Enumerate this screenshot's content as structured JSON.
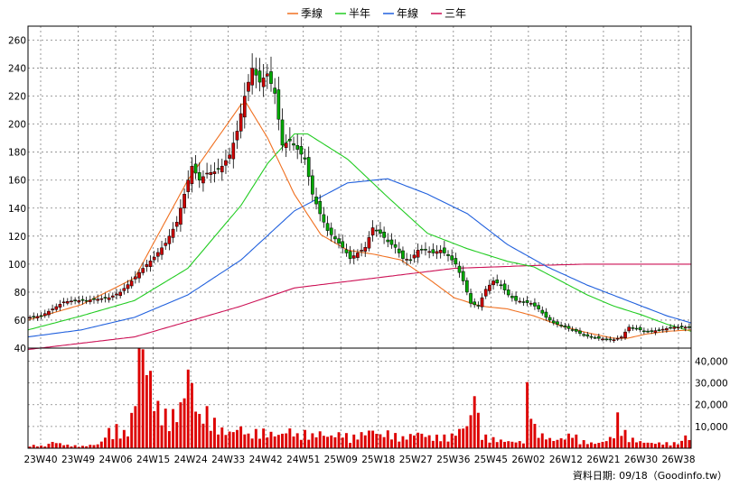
{
  "chart_data": {
    "type": "candlestick",
    "legend": [
      {
        "label": "季線",
        "color": "#f07020"
      },
      {
        "label": "半年",
        "color": "#22cc22"
      },
      {
        "label": "年線",
        "color": "#2060dd"
      },
      {
        "label": "三年",
        "color": "#cc1155"
      }
    ],
    "colors": {
      "up": "#cc0000",
      "down": "#00aa00",
      "volume": "#dd0000",
      "grid": "#808080"
    },
    "price_axis": {
      "ylim": [
        40,
        270
      ],
      "ticks": [
        40,
        60,
        80,
        100,
        120,
        140,
        160,
        180,
        200,
        220,
        240,
        260
      ]
    },
    "volume_axis": {
      "ylim": [
        0,
        46000
      ],
      "ticks": [
        10000,
        20000,
        30000,
        40000
      ],
      "tick_labels": [
        "10,000",
        "20,000",
        "30,000",
        "40,000"
      ]
    },
    "x_tick_labels": [
      "23W40",
      "23W49",
      "24W06",
      "24W15",
      "24W24",
      "24W33",
      "24W42",
      "24W51",
      "25W09",
      "25W18",
      "25W27",
      "25W36",
      "25W45",
      "26W02",
      "26W12",
      "26W21",
      "26W30",
      "26W38"
    ],
    "grid": true,
    "footer": "資料日期: 09/18（Goodinfo.tw）",
    "anchors": {
      "close": [
        [
          0,
          62
        ],
        [
          3,
          63
        ],
        [
          6,
          68
        ],
        [
          9,
          73
        ],
        [
          12,
          74
        ],
        [
          15,
          74
        ],
        [
          18,
          75
        ],
        [
          21,
          76
        ],
        [
          24,
          80
        ],
        [
          27,
          88
        ],
        [
          30,
          97
        ],
        [
          33,
          105
        ],
        [
          36,
          115
        ],
        [
          39,
          130
        ],
        [
          41,
          150
        ],
        [
          43,
          170
        ],
        [
          45,
          160
        ],
        [
          47,
          165
        ],
        [
          49,
          166
        ],
        [
          51,
          170
        ],
        [
          53,
          178
        ],
        [
          55,
          195
        ],
        [
          57,
          220
        ],
        [
          59,
          240
        ],
        [
          61,
          230
        ],
        [
          63,
          236
        ],
        [
          65,
          222
        ],
        [
          67,
          185
        ],
        [
          69,
          188
        ],
        [
          71,
          182
        ],
        [
          73,
          175
        ],
        [
          75,
          150
        ],
        [
          77,
          136
        ],
        [
          79,
          124
        ],
        [
          81,
          118
        ],
        [
          83,
          112
        ],
        [
          85,
          104
        ],
        [
          87,
          108
        ],
        [
          89,
          112
        ],
        [
          91,
          126
        ],
        [
          93,
          122
        ],
        [
          95,
          116
        ],
        [
          97,
          112
        ],
        [
          99,
          104
        ],
        [
          101,
          103
        ],
        [
          103,
          110
        ],
        [
          105,
          110
        ],
        [
          107,
          108
        ],
        [
          109,
          110
        ],
        [
          111,
          106
        ],
        [
          113,
          100
        ],
        [
          115,
          88
        ],
        [
          117,
          72
        ],
        [
          119,
          70
        ],
        [
          121,
          82
        ],
        [
          123,
          88
        ],
        [
          125,
          85
        ],
        [
          127,
          78
        ],
        [
          129,
          74
        ],
        [
          131,
          73
        ],
        [
          133,
          72
        ],
        [
          135,
          68
        ],
        [
          137,
          62
        ],
        [
          139,
          58
        ],
        [
          141,
          56
        ],
        [
          143,
          54
        ],
        [
          145,
          52
        ],
        [
          147,
          49
        ],
        [
          149,
          48
        ],
        [
          151,
          47
        ],
        [
          153,
          46
        ],
        [
          155,
          46
        ],
        [
          157,
          48
        ],
        [
          159,
          55
        ],
        [
          161,
          54
        ],
        [
          163,
          52
        ],
        [
          165,
          52
        ],
        [
          167,
          53
        ],
        [
          169,
          54
        ],
        [
          171,
          55
        ],
        [
          173,
          55
        ],
        [
          175,
          55
        ]
      ],
      "volume": [
        [
          0,
          1200
        ],
        [
          4,
          800
        ],
        [
          6,
          2500
        ],
        [
          8,
          1800
        ],
        [
          10,
          1200
        ],
        [
          14,
          800
        ],
        [
          16,
          1200
        ],
        [
          18,
          1500
        ],
        [
          19,
          2500
        ],
        [
          21,
          7000
        ],
        [
          22,
          5000
        ],
        [
          23,
          8000
        ],
        [
          25,
          6000
        ],
        [
          26,
          7000
        ],
        [
          27,
          12000
        ],
        [
          28,
          20000
        ],
        [
          29,
          38000
        ],
        [
          30,
          40000
        ],
        [
          31,
          30000
        ],
        [
          32,
          28000
        ],
        [
          33,
          18000
        ],
        [
          35,
          14000
        ],
        [
          37,
          12000
        ],
        [
          39,
          14000
        ],
        [
          40,
          16000
        ],
        [
          41,
          22000
        ],
        [
          42,
          30000
        ],
        [
          43,
          25000
        ],
        [
          44,
          16000
        ],
        [
          45,
          12000
        ],
        [
          47,
          14000
        ],
        [
          49,
          10000
        ],
        [
          51,
          7000
        ],
        [
          53,
          6000
        ],
        [
          56,
          8000
        ],
        [
          58,
          5000
        ],
        [
          61,
          7000
        ],
        [
          63,
          6000
        ],
        [
          66,
          5000
        ],
        [
          69,
          7000
        ],
        [
          71,
          5000
        ],
        [
          73,
          6000
        ],
        [
          75,
          5000
        ],
        [
          77,
          6000
        ],
        [
          79,
          4500
        ],
        [
          81,
          5000
        ],
        [
          83,
          6000
        ],
        [
          85,
          4000
        ],
        [
          87,
          5000
        ],
        [
          89,
          6000
        ],
        [
          91,
          7000
        ],
        [
          93,
          5000
        ],
        [
          95,
          6000
        ],
        [
          97,
          5000
        ],
        [
          99,
          4000
        ],
        [
          101,
          5000
        ],
        [
          103,
          6000
        ],
        [
          105,
          5000
        ],
        [
          107,
          4000
        ],
        [
          109,
          5000
        ],
        [
          111,
          4000
        ],
        [
          113,
          6000
        ],
        [
          115,
          8000
        ],
        [
          116,
          9000
        ],
        [
          117,
          12000
        ],
        [
          118,
          25000
        ],
        [
          119,
          12000
        ],
        [
          120,
          5000
        ],
        [
          122,
          4000
        ],
        [
          125,
          3000
        ],
        [
          128,
          2500
        ],
        [
          131,
          2500
        ],
        [
          132,
          22000
        ],
        [
          133,
          20000
        ],
        [
          134,
          8000
        ],
        [
          136,
          5000
        ],
        [
          139,
          3000
        ],
        [
          142,
          4000
        ],
        [
          144,
          6000
        ],
        [
          146,
          3000
        ],
        [
          149,
          2000
        ],
        [
          151,
          2000
        ],
        [
          153,
          3000
        ],
        [
          155,
          5000
        ],
        [
          156,
          12000
        ],
        [
          157,
          8000
        ],
        [
          159,
          4000
        ],
        [
          162,
          2500
        ],
        [
          165,
          2000
        ],
        [
          168,
          2000
        ],
        [
          171,
          2000
        ],
        [
          173,
          2500
        ],
        [
          174,
          6000
        ],
        [
          175,
          3000
        ]
      ],
      "ma_quarter": [
        [
          0,
          60
        ],
        [
          20,
          71
        ],
        [
          40,
          90
        ],
        [
          60,
          160
        ],
        [
          80,
          214
        ],
        [
          82,
          215
        ],
        [
          90,
          190
        ],
        [
          100,
          150
        ],
        [
          110,
          121
        ],
        [
          120,
          110
        ],
        [
          130,
          107
        ],
        [
          140,
          103
        ],
        [
          150,
          90
        ],
        [
          160,
          76
        ],
        [
          170,
          70
        ],
        [
          180,
          68
        ],
        [
          190,
          63
        ],
        [
          200,
          56
        ],
        [
          210,
          51
        ],
        [
          220,
          47
        ],
        [
          225,
          47
        ],
        [
          232,
          50
        ],
        [
          240,
          52
        ],
        [
          249,
          53
        ]
      ],
      "ma_half": [
        [
          0,
          53
        ],
        [
          20,
          63
        ],
        [
          40,
          74
        ],
        [
          60,
          97
        ],
        [
          80,
          142
        ],
        [
          90,
          172
        ],
        [
          100,
          193
        ],
        [
          105,
          193
        ],
        [
          120,
          175
        ],
        [
          135,
          148
        ],
        [
          150,
          122
        ],
        [
          165,
          111
        ],
        [
          180,
          102
        ],
        [
          190,
          98
        ],
        [
          200,
          88
        ],
        [
          210,
          78
        ],
        [
          220,
          70
        ],
        [
          230,
          64
        ],
        [
          240,
          57
        ],
        [
          249,
          52
        ]
      ],
      "ma_year": [
        [
          0,
          48
        ],
        [
          20,
          53
        ],
        [
          40,
          62
        ],
        [
          60,
          78
        ],
        [
          80,
          103
        ],
        [
          100,
          138
        ],
        [
          120,
          158
        ],
        [
          135,
          161
        ],
        [
          150,
          150
        ],
        [
          165,
          136
        ],
        [
          180,
          114
        ],
        [
          195,
          98
        ],
        [
          210,
          85
        ],
        [
          225,
          74
        ],
        [
          240,
          63
        ],
        [
          249,
          58
        ]
      ],
      "ma_3year": [
        [
          0,
          39
        ],
        [
          40,
          48
        ],
        [
          80,
          70
        ],
        [
          100,
          83
        ],
        [
          130,
          90
        ],
        [
          160,
          97
        ],
        [
          190,
          99
        ],
        [
          210,
          100
        ],
        [
          249,
          100
        ]
      ]
    }
  }
}
